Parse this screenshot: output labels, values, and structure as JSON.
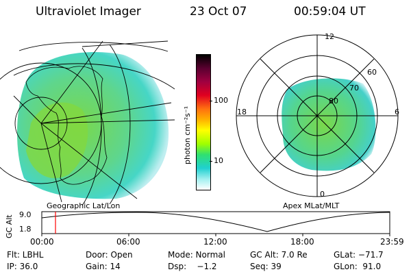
{
  "header": {
    "title": "Ultraviolet Imager",
    "date": "23 Oct 07",
    "time": "00:59:04 UT"
  },
  "left_panel": {
    "caption": "Geographic Lat/Lon"
  },
  "right_panel": {
    "caption": "Apex MLat/MLT",
    "mlt_labels": [
      "12",
      "18",
      "6",
      "0"
    ],
    "mlat_labels": [
      "60",
      "70",
      "80"
    ]
  },
  "colorbar": {
    "unit_label": "photon cm⁻²s⁻¹",
    "tick_labels": [
      "100",
      "10"
    ],
    "colors": [
      "#000000",
      "#5a0030",
      "#a00040",
      "#e00020",
      "#ff7010",
      "#ffb000",
      "#ffff00",
      "#a0ff00",
      "#30e070",
      "#20d0d0",
      "#a0f0f0",
      "#ffffff"
    ]
  },
  "gc_alt_plot": {
    "axis_label": "GC Alt",
    "y_ticks": [
      "9.0",
      "1.8"
    ],
    "x_ticks": [
      "00:00",
      "06:00",
      "12:00",
      "18:00",
      "23:59"
    ],
    "marker_color": "#ff0000",
    "marker_time": "00:59"
  },
  "footer": {
    "row1": {
      "flt": "Flt: LBHL",
      "door": "Door: Open",
      "mode": "Mode: Normal",
      "gcalt": "GC Alt: 7.0 Re",
      "glat": "GLat: −71.7"
    },
    "row2": {
      "ip": "IP: 36.0",
      "gain": "Gain: 14",
      "dsp": "Dsp:    −1.2",
      "seq": "Seq: 39",
      "glon": "GLon:  91.0"
    }
  },
  "icons": {
    "colorbar": "color-scale-bar"
  }
}
